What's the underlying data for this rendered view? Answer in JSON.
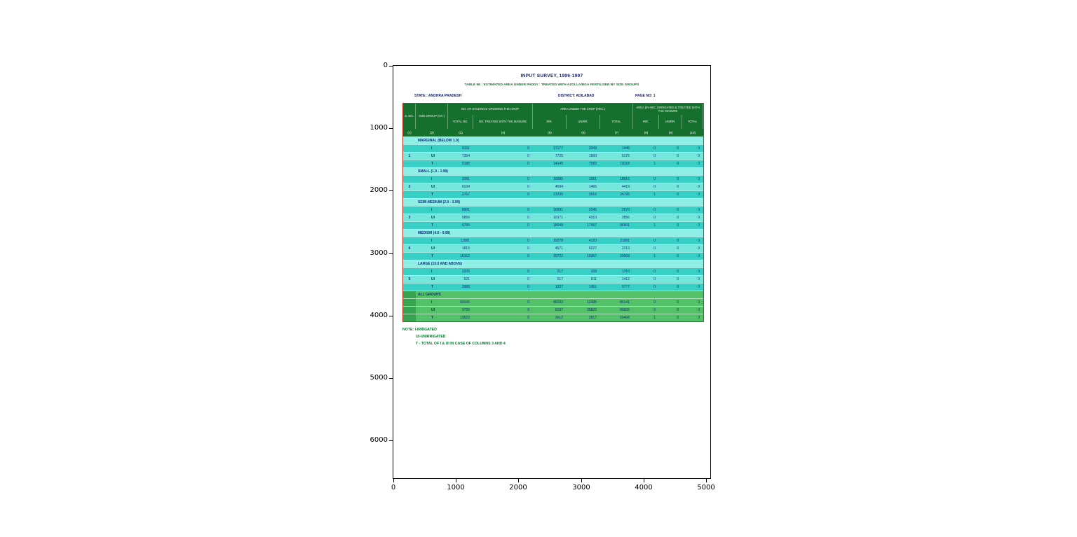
{
  "figure": {
    "x_ticks": [
      "0",
      "1000",
      "2000",
      "3000",
      "4000",
      "5000"
    ],
    "y_ticks": [
      "0",
      "1000",
      "2000",
      "3000",
      "4000",
      "5000",
      "6000"
    ]
  },
  "document": {
    "title": "INPUT SURVEY, 1996-1997",
    "subtitle": "TABLE 5E : ESTIMATED AREA UNDER PADDY : TREATED WITH AZOLLA/BGA FERTILISER BY SIZE GROUPS",
    "state": "STATE : ANDHRA PRADESH",
    "district": "DISTRICT: ADILABAD",
    "page": "PAGE NO: 1",
    "notes": [
      "NOTE: I-IRRIGATED",
      "UI-UNIRRIGATED",
      "T - TOTAL OF I & UI IN CASE OF COLUMNS 3 AND 4"
    ]
  },
  "table": {
    "header": {
      "sno": "S. NO.",
      "size_group": "SIZE GROUP (HA.)",
      "holdings": "NO. OF HOLDINGS GROWING THE CROP",
      "area": "AREA UNDER THE CROP (HEC.)",
      "treated": "AREA (IN HEC.) IRRIGATED & TREATED WITH THE MANURE",
      "total_no": "TOTAL NO.",
      "no_treated": "NO. TREATED WITH THE MANURE",
      "irr1": "IRR.",
      "unirr1": "UNIRR.",
      "total1": "TOTAL",
      "irr2": "IRR.",
      "unirr2": "UNIRR.",
      "total2": "TOTAL"
    },
    "col_numbers": [
      "(1)",
      "(2)",
      "(3)",
      "(4)",
      "(5)",
      "(6)",
      "(7)",
      "(8)",
      "(9)",
      "(10)"
    ],
    "groups": [
      {
        "sno": "1",
        "label": "MARGINAL (BELOW 1.0)",
        "rows": [
          {
            "type": "I",
            "values": [
              "9151",
              "0",
              "17177",
              "3343",
              "1446",
              "0",
              "0",
              "0"
            ]
          },
          {
            "type": "UI",
            "values": [
              "7354",
              "0",
              "7725",
              "1560",
              "5175",
              "0",
              "0",
              "0"
            ]
          },
          {
            "type": "T",
            "values": [
              "6188",
              "0",
              "14145",
              "7583",
              "19318",
              "1",
              "0",
              "0"
            ]
          }
        ]
      },
      {
        "sno": "2",
        "label": "SMALL (1.0 - 1.99)",
        "rows": [
          {
            "type": "I",
            "values": [
              "2091",
              "0",
              "16585",
              "1551",
              "18816",
              "0",
              "0",
              "0"
            ]
          },
          {
            "type": "UI",
            "values": [
              "6134",
              "0",
              "4594",
              "1465",
              "4419",
              "0",
              "0",
              "0"
            ]
          },
          {
            "type": "T",
            "values": [
              "2767",
              "0",
              "21235",
              "3516",
              "24795",
              "1",
              "0",
              "0"
            ]
          }
        ]
      },
      {
        "sno": "3",
        "label": "SEMI-MEDIUM (2.0 - 3.99)",
        "rows": [
          {
            "type": "I",
            "values": [
              "8901",
              "0",
              "16591",
              "2245",
              "2570",
              "0",
              "0",
              "0"
            ]
          },
          {
            "type": "UI",
            "values": [
              "5856",
              "0",
              "10171",
              "4310",
              "3856",
              "0",
              "0",
              "0"
            ]
          },
          {
            "type": "T",
            "values": [
              "6755",
              "0",
              "18048",
              "17457",
              "96501",
              "1",
              "0",
              "0"
            ]
          }
        ]
      },
      {
        "sno": "4",
        "label": "MEDIUM (4.0 - 9.99)",
        "rows": [
          {
            "type": "I",
            "values": [
              "11581",
              "0",
              "19278",
              "4120",
              "21891",
              "0",
              "0",
              "0"
            ]
          },
          {
            "type": "UI",
            "values": [
              "1815",
              "0",
              "4571",
              "6227",
              "2213",
              "0",
              "0",
              "0"
            ]
          },
          {
            "type": "T",
            "values": [
              "16312",
              "0",
              "19722",
              "10367",
              "20009",
              "1",
              "0",
              "0"
            ]
          }
        ]
      },
      {
        "sno": "5",
        "label": "LARGE (10.0 AND ABOVE)",
        "rows": [
          {
            "type": "I",
            "values": [
              "2205",
              "0",
              "217",
              "159",
              "1310",
              "0",
              "0",
              "0"
            ]
          },
          {
            "type": "UI",
            "values": [
              "521",
              "0",
              "517",
              "811",
              "1412",
              "0",
              "0",
              "0"
            ]
          },
          {
            "type": "T",
            "values": [
              "2988",
              "0",
              "1227",
              "1451",
              "5777",
              "0",
              "0",
              "0"
            ]
          }
        ]
      },
      {
        "sno": "",
        "all": true,
        "label": "ALL GROUPS",
        "rows": [
          {
            "type": "I",
            "values": [
              "93165",
              "0",
              "86293",
              "12485",
              "85141",
              "0",
              "0",
              "0"
            ]
          },
          {
            "type": "UI",
            "values": [
              "3726",
              "0",
              "8197",
              "25822",
              "89655",
              "0",
              "0",
              "0"
            ]
          },
          {
            "type": "T",
            "values": [
              "19623",
              "0",
              "2612",
              "2817",
              "69408",
              "1",
              "0",
              "0"
            ]
          }
        ]
      }
    ]
  },
  "colors": {
    "header_bg": "#15702e",
    "row_a": "#38cfc4",
    "row_b": "#74e6dc",
    "group_row": "#8feee6",
    "all_bg": "#52c167",
    "sno_all_bg": "#35a350",
    "border_red": "#d12b1e",
    "title_navy": "#121f6e",
    "green_text": "#067a2d",
    "body_text": "#0d2f7a"
  }
}
